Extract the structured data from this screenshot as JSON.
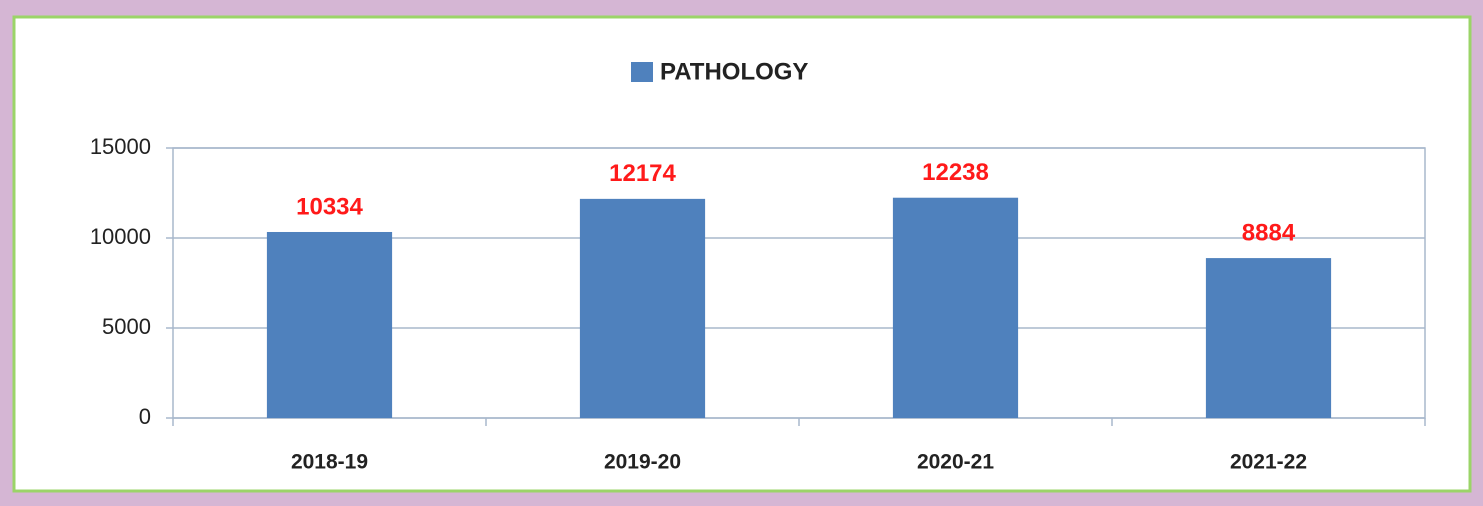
{
  "chart_data": {
    "type": "bar",
    "categories": [
      "2018-19",
      "2019-20",
      "2020-21",
      "2021-22"
    ],
    "series": [
      {
        "name": "PATHOLOGY",
        "color": "#4f81bd",
        "values": [
          10334,
          12174,
          12238,
          8884
        ]
      }
    ],
    "ylim": [
      0,
      15000
    ],
    "yticks": [
      0,
      5000,
      10000,
      15000
    ],
    "grid": true,
    "legend": "top"
  }
}
